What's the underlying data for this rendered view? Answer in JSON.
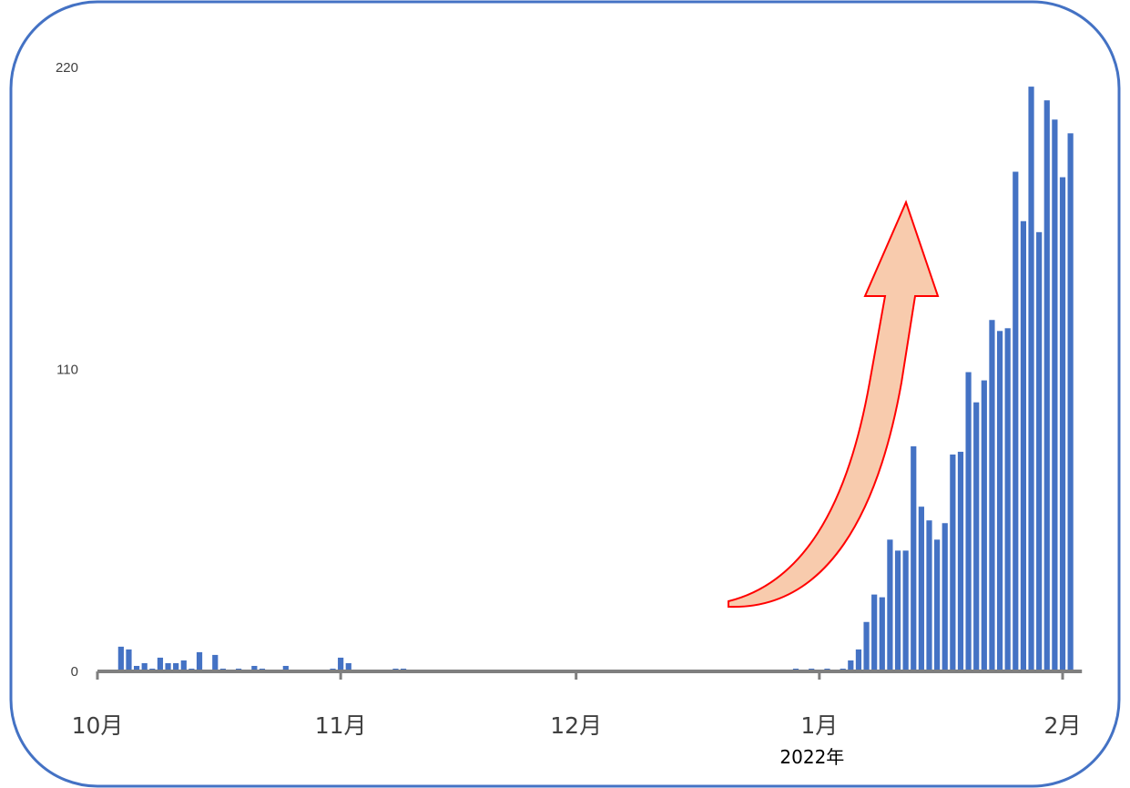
{
  "chart_data": {
    "type": "bar",
    "title": "",
    "xlabel": "",
    "ylabel": "",
    "x_start_date": "2021-10-01",
    "x_end_date": "2022-02-03",
    "ylim": [
      0,
      220
    ],
    "y_ticks": [
      "0",
      "110",
      "220"
    ],
    "x_ticks": [
      {
        "date": "2021-10-01",
        "label": "10月"
      },
      {
        "date": "2021-11-01",
        "label": "11月"
      },
      {
        "date": "2021-12-01",
        "label": "12月"
      },
      {
        "date": "2022-01-01",
        "label": "1月"
      },
      {
        "date": "2022-02-01",
        "label": "2月"
      }
    ],
    "x_sublabel": "2022年",
    "grid": false,
    "legend": "none",
    "series": [
      {
        "color": "#4472C4",
        "points": [
          {
            "x": "2021-10-04",
            "y": 9
          },
          {
            "x": "2021-10-05",
            "y": 8
          },
          {
            "x": "2021-10-06",
            "y": 2
          },
          {
            "x": "2021-10-07",
            "y": 3
          },
          {
            "x": "2021-10-08",
            "y": 1
          },
          {
            "x": "2021-10-09",
            "y": 5
          },
          {
            "x": "2021-10-10",
            "y": 3
          },
          {
            "x": "2021-10-11",
            "y": 3
          },
          {
            "x": "2021-10-12",
            "y": 4
          },
          {
            "x": "2021-10-13",
            "y": 1
          },
          {
            "x": "2021-10-14",
            "y": 7
          },
          {
            "x": "2021-10-16",
            "y": 6
          },
          {
            "x": "2021-10-17",
            "y": 1
          },
          {
            "x": "2021-10-19",
            "y": 1
          },
          {
            "x": "2021-10-21",
            "y": 2
          },
          {
            "x": "2021-10-22",
            "y": 1
          },
          {
            "x": "2021-10-25",
            "y": 2
          },
          {
            "x": "2021-10-31",
            "y": 1
          },
          {
            "x": "2021-11-01",
            "y": 5
          },
          {
            "x": "2021-11-02",
            "y": 3
          },
          {
            "x": "2021-11-08",
            "y": 1
          },
          {
            "x": "2021-11-09",
            "y": 1
          },
          {
            "x": "2021-12-29",
            "y": 1
          },
          {
            "x": "2021-12-31",
            "y": 1
          },
          {
            "x": "2022-01-02",
            "y": 1
          },
          {
            "x": "2022-01-04",
            "y": 1
          },
          {
            "x": "2022-01-05",
            "y": 4
          },
          {
            "x": "2022-01-06",
            "y": 8
          },
          {
            "x": "2022-01-07",
            "y": 18
          },
          {
            "x": "2022-01-08",
            "y": 28
          },
          {
            "x": "2022-01-09",
            "y": 27
          },
          {
            "x": "2022-01-10",
            "y": 48
          },
          {
            "x": "2022-01-11",
            "y": 44
          },
          {
            "x": "2022-01-12",
            "y": 44
          },
          {
            "x": "2022-01-13",
            "y": 82
          },
          {
            "x": "2022-01-14",
            "y": 60
          },
          {
            "x": "2022-01-15",
            "y": 55
          },
          {
            "x": "2022-01-16",
            "y": 48
          },
          {
            "x": "2022-01-17",
            "y": 54
          },
          {
            "x": "2022-01-18",
            "y": 79
          },
          {
            "x": "2022-01-19",
            "y": 80
          },
          {
            "x": "2022-01-20",
            "y": 109
          },
          {
            "x": "2022-01-21",
            "y": 98
          },
          {
            "x": "2022-01-22",
            "y": 106
          },
          {
            "x": "2022-01-23",
            "y": 128
          },
          {
            "x": "2022-01-24",
            "y": 124
          },
          {
            "x": "2022-01-25",
            "y": 125
          },
          {
            "x": "2022-01-26",
            "y": 182
          },
          {
            "x": "2022-01-27",
            "y": 164
          },
          {
            "x": "2022-01-28",
            "y": 213
          },
          {
            "x": "2022-01-29",
            "y": 160
          },
          {
            "x": "2022-01-30",
            "y": 208
          },
          {
            "x": "2022-01-31",
            "y": 201
          },
          {
            "x": "2022-02-01",
            "y": 180
          },
          {
            "x": "2022-02-02",
            "y": 196
          }
        ]
      }
    ]
  },
  "annotation": {
    "fill": "#F8CBAD",
    "stroke": "#FF0000"
  },
  "frame_color": "#4472C4",
  "axis_color": "#7F7F7F"
}
